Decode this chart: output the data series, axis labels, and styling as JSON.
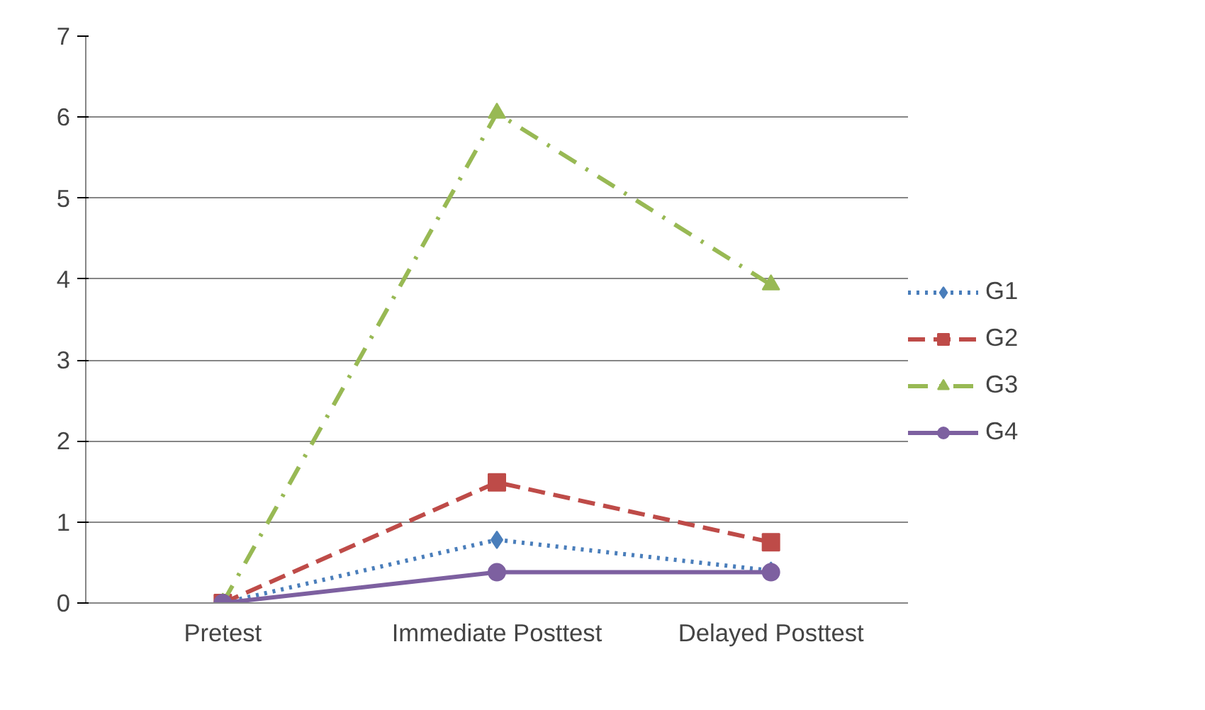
{
  "chart_data": {
    "type": "line",
    "categories": [
      "Pretest",
      "Immediate Posttest",
      "Delayed Posttest"
    ],
    "series": [
      {
        "name": "G1",
        "color": "#4a7ebb",
        "values": [
          0,
          0.78,
          0.4
        ],
        "marker": "diamond",
        "line_style": "dotted"
      },
      {
        "name": "G2",
        "color": "#be4b48",
        "values": [
          0,
          1.49,
          0.75
        ],
        "marker": "square",
        "line_style": "dashed"
      },
      {
        "name": "G3",
        "color": "#98b954",
        "values": [
          0,
          6.05,
          3.93
        ],
        "marker": "triangle",
        "line_style": "dashdot"
      },
      {
        "name": "G4",
        "color": "#7d60a0",
        "values": [
          0,
          0.38,
          0.38
        ],
        "marker": "circle",
        "line_style": "solid"
      }
    ],
    "ylim": [
      0,
      7
    ],
    "yticks": [
      0,
      1,
      2,
      3,
      4,
      5,
      6,
      7
    ],
    "grid": "y",
    "legend": "right"
  }
}
